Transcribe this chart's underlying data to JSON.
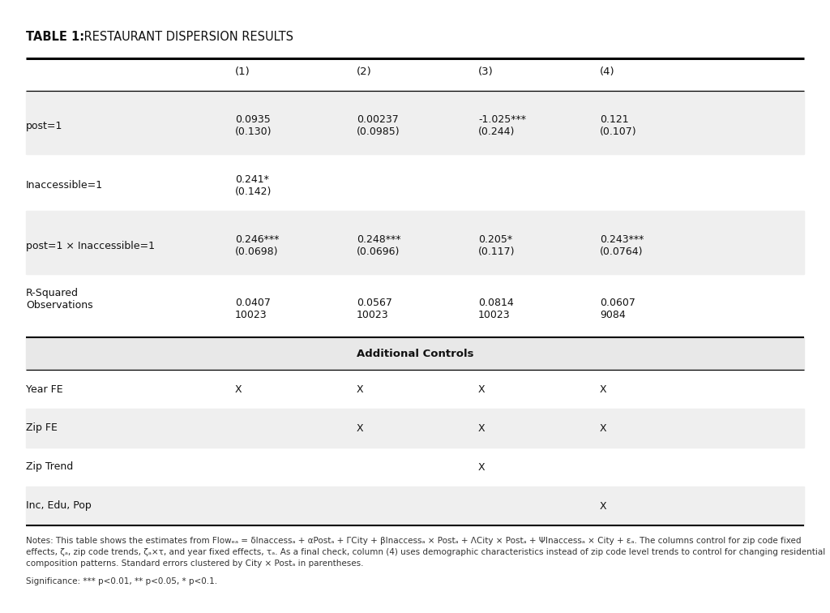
{
  "title_bold": "TABLE 1:",
  "title_rest": " RESTAURANT DISPERSION RESULTS",
  "columns": [
    "",
    "(1)",
    "(2)",
    "(3)",
    "(4)"
  ],
  "rows": [
    {
      "label": "post=1",
      "values": [
        "0.0935\n(0.130)",
        "0.00237\n(0.0985)",
        "-1.025***\n(0.244)",
        "0.121\n(0.107)"
      ],
      "shaded": true
    },
    {
      "label": "Inaccessible=1",
      "values": [
        "0.241*\n(0.142)",
        "",
        "",
        ""
      ],
      "shaded": false
    },
    {
      "label": "post=1 × Inaccessible=1",
      "values": [
        "0.246***\n(0.0698)",
        "0.248***\n(0.0696)",
        "0.205*\n(0.117)",
        "0.243***\n(0.0764)"
      ],
      "shaded": true
    },
    {
      "label": "R-Squared\nObservations",
      "values": [
        "0.0407\n10023",
        "0.0567\n10023",
        "0.0814\n10023",
        "0.0607\n9084"
      ],
      "shaded": false
    }
  ],
  "additional_controls_header": "Additional Controls",
  "controls": [
    {
      "label": "Year FE",
      "values": [
        "X",
        "X",
        "X",
        "X"
      ],
      "shaded": false
    },
    {
      "label": "Zip FE",
      "values": [
        "",
        "X",
        "X",
        "X"
      ],
      "shaded": true
    },
    {
      "label": "Zip Trend",
      "values": [
        "",
        "",
        "X",
        ""
      ],
      "shaded": false
    },
    {
      "label": "Inc, Edu, Pop",
      "values": [
        "",
        "",
        "",
        "X"
      ],
      "shaded": true
    }
  ],
  "notes1": "Notes: This table shows the estimates from Flowₑₐ = δInaccessₐ + αPostₐ + ΓCity⁣ + βInaccessₐ⁣ × Postₐ + ΛCity⁣ × Postₐ + ΨInaccessₐ⁣ × City⁣ + εₐ. The columns control for zip code fixed",
  "notes2": "effects, ζₐ, zip code trends, ζₐ×τ, and year fixed effects, τₐ. As a final check, column (4) uses demographic characteristics instead of zip code level trends to control for changing residential",
  "notes3": "composition patterns. Standard errors clustered by City⁣ × Postₐ in parentheses.",
  "significance": "Significance: *** p<0.01, ** p<0.05, * p<0.1.",
  "bg_color": "#ffffff",
  "shaded_color": "#efefef",
  "ac_header_color": "#e8e8e8",
  "text_color": "#111111",
  "notes_color": "#333333"
}
